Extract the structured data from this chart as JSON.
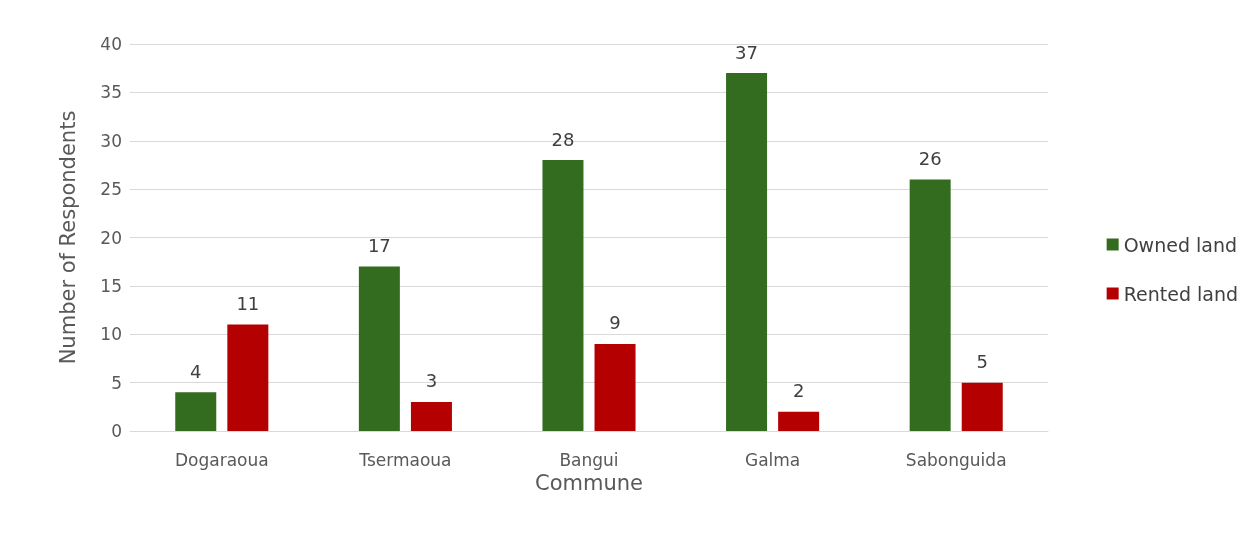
{
  "chart_data": {
    "type": "bar",
    "xlabel": "Commune",
    "ylabel": "Number of Respondents",
    "categories": [
      "Dogaraoua",
      "Tsermaoua",
      "Bangui",
      "Galma",
      "Sabonguida"
    ],
    "series": [
      {
        "name": "Owned land",
        "color": "#336b1f",
        "values": [
          4,
          17,
          28,
          37,
          26
        ]
      },
      {
        "name": "Rented land",
        "color": "#b40000",
        "values": [
          11,
          3,
          9,
          2,
          5
        ]
      }
    ],
    "ylim": [
      0,
      40
    ],
    "yticks": [
      0,
      5,
      10,
      15,
      20,
      25,
      30,
      35,
      40
    ],
    "grid": "y",
    "legend": "right",
    "data_labels": true
  }
}
